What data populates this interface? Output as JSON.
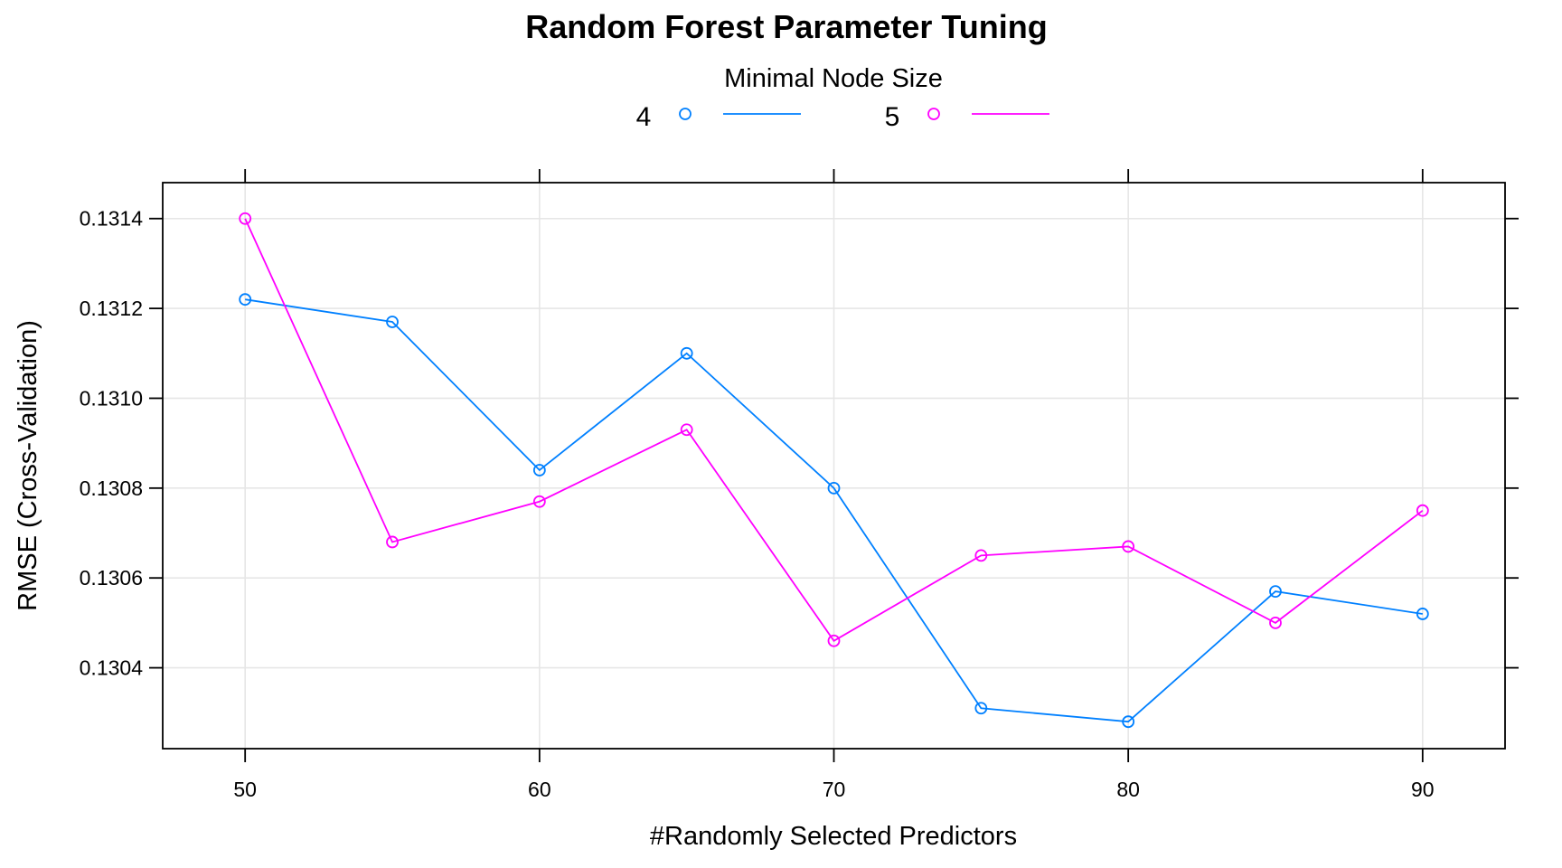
{
  "chart_data": {
    "type": "line",
    "title": "Random Forest Parameter Tuning",
    "xlabel": "#Randomly Selected Predictors",
    "ylabel": "RMSE (Cross-Validation)",
    "legend": {
      "title": "Minimal Node Size",
      "placement": "top"
    },
    "x": [
      50,
      55,
      60,
      65,
      70,
      75,
      80,
      85,
      90
    ],
    "xlim": [
      47.2,
      92.8
    ],
    "ylim": [
      0.13022,
      0.13148
    ],
    "xticks": [
      50,
      60,
      70,
      80,
      90
    ],
    "xtick_labels": [
      "50",
      "60",
      "70",
      "80",
      "90"
    ],
    "yticks": [
      0.1304,
      0.1306,
      0.1308,
      0.131,
      0.1312,
      0.1314
    ],
    "ytick_labels": [
      "0.1304",
      "0.1306",
      "0.1308",
      "0.1310",
      "0.1312",
      "0.1314"
    ],
    "grid": true,
    "series": [
      {
        "name": "4",
        "color": "#0080ff",
        "marker": "circle",
        "values": [
          0.13122,
          0.13117,
          0.13084,
          0.1311,
          0.1308,
          0.13031,
          0.13028,
          0.13057,
          0.13052
        ]
      },
      {
        "name": "5",
        "color": "#ff00ff",
        "marker": "circle",
        "values": [
          0.1314,
          0.13068,
          0.13077,
          0.13093,
          0.13046,
          0.13065,
          0.13067,
          0.1305,
          0.13075
        ]
      }
    ]
  }
}
